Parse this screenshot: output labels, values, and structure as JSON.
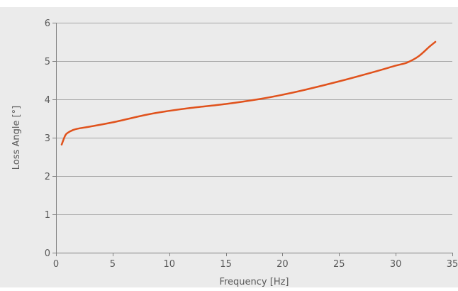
{
  "chart_data": {
    "type": "line",
    "title": "",
    "xlabel": "Frequency [Hz]",
    "ylabel": "Loss Angle [°]",
    "xlim": [
      0,
      35
    ],
    "ylim": [
      0,
      6
    ],
    "x_ticks": [
      0,
      5,
      10,
      15,
      20,
      25,
      30,
      35
    ],
    "y_ticks": [
      0,
      1,
      2,
      3,
      4,
      5,
      6
    ],
    "grid": "horizontal",
    "legend": "none",
    "series": [
      {
        "color": "#e0521c",
        "x": [
          0.5,
          0.8,
          1,
          1.5,
          2,
          3,
          5,
          8,
          10,
          12,
          15,
          18,
          20,
          22,
          25,
          28,
          30,
          31,
          32,
          33,
          33.5
        ],
        "y": [
          2.82,
          3.05,
          3.12,
          3.2,
          3.24,
          3.29,
          3.4,
          3.6,
          3.7,
          3.78,
          3.88,
          4.01,
          4.12,
          4.25,
          4.47,
          4.71,
          4.88,
          4.96,
          5.12,
          5.38,
          5.5
        ]
      }
    ]
  }
}
